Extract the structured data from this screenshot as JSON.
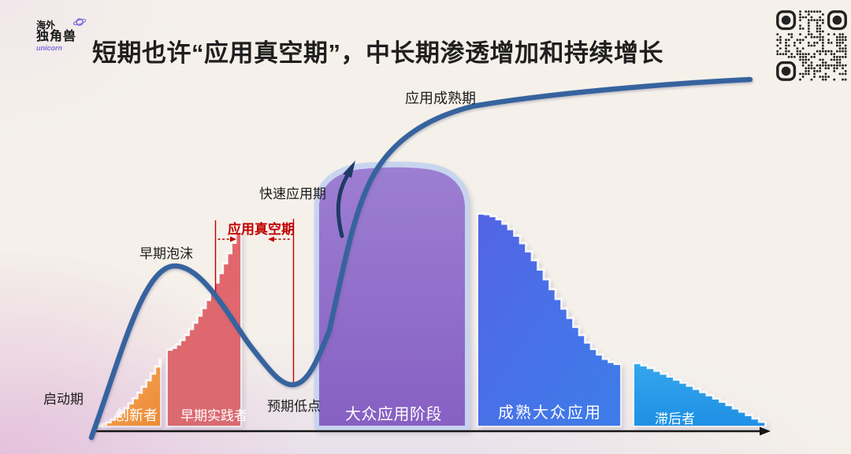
{
  "slide": {
    "title": "短期也许“应用真空期”，中长期渗透增加和持续增长"
  },
  "logo": {
    "line1": "海外",
    "line2": "独角兽",
    "caption": "unicorn"
  },
  "diagram": {
    "type": "hype-cycle-adoption-curve",
    "curve_annotations": {
      "startup": "启动期",
      "early_bubble": "早期泡沫",
      "vacuum": "应用真空期",
      "rapid_adoption": "快速应用期",
      "maturity": "应用成熟期",
      "trough": "预期低点"
    },
    "segments": {
      "innovators": "创新者",
      "early_adopters": "早期实践者",
      "mass_adoption": "大众应用阶段",
      "mature_mass": "成熟大众应用",
      "laggards": "滞后者"
    }
  },
  "colors": {
    "background_cream": "#f5f1ea",
    "title_text": "#1f1f1f",
    "label_black": "#1c1c1c",
    "label_white": "#ffffff",
    "curve_blue": "#36639e",
    "arrow_navy": "#1f3a66",
    "annotation_red": "#c00000",
    "axis_black": "#161616",
    "halo_blue": "#c7d4f1",
    "orange_top": "#f6ab5e",
    "orange_bottom": "#ec8a35",
    "red_top": "#e4666c",
    "red_bottom": "#d96a70",
    "purple_top": "#9c7ed2",
    "purple_bottom": "#8760c3",
    "blue_left": "#5364e5",
    "blue_right": "#3d7de9",
    "lightblue_top": "#35a6ec",
    "lightblue_bottom": "#1e90e5"
  }
}
